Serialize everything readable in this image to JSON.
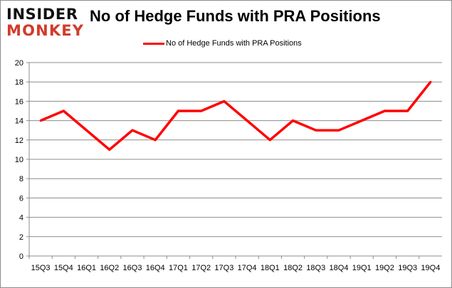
{
  "logo": {
    "line1": "INSIDER",
    "line2": "MONKEY"
  },
  "chart_data": {
    "type": "line",
    "title": "No of Hedge Funds with PRA Positions",
    "categories": [
      "15Q3",
      "15Q4",
      "16Q1",
      "16Q2",
      "16Q3",
      "16Q4",
      "17Q1",
      "17Q2",
      "17Q3",
      "17Q4",
      "18Q1",
      "18Q2",
      "18Q3",
      "18Q4",
      "19Q1",
      "19Q2",
      "19Q3",
      "19Q4"
    ],
    "series": [
      {
        "name": "No of Hedge Funds with PRA Positions",
        "values": [
          14,
          15,
          13,
          11,
          13,
          12,
          15,
          15,
          16,
          14,
          12,
          14,
          13,
          13,
          14,
          15,
          15,
          18
        ],
        "color": "#ff0000"
      }
    ],
    "ylim": [
      0,
      20
    ],
    "yticks": [
      0,
      2,
      4,
      6,
      8,
      10,
      12,
      14,
      16,
      18,
      20
    ],
    "grid": true,
    "legend": "top-center"
  }
}
